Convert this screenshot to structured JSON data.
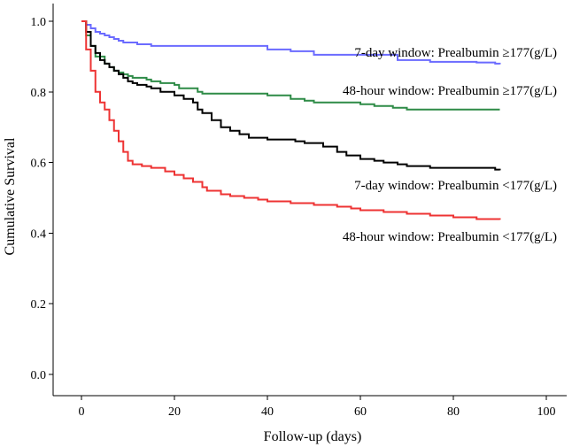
{
  "chart_data": {
    "type": "line",
    "title": "",
    "xlabel": "Follow-up (days)",
    "ylabel": "Cumulative Survival",
    "xlim": [
      0,
      100
    ],
    "ylim": [
      0,
      1.0
    ],
    "xticks": [
      0,
      20,
      40,
      60,
      80,
      100
    ],
    "yticks": [
      0.0,
      0.2,
      0.4,
      0.6,
      0.8,
      1.0
    ],
    "xtick_labels": [
      "0",
      "20",
      "40",
      "60",
      "80",
      "100"
    ],
    "ytick_labels": [
      "0.0",
      "0.2",
      "0.4",
      "0.6",
      "0.8",
      "1.0"
    ],
    "grid": false,
    "legend": "inline labels right of curves",
    "series": [
      {
        "name": "7-day window: Prealbumin ≥177(g/L)",
        "color": "#6b6bff",
        "x": [
          0,
          1,
          2,
          3,
          4,
          5,
          6,
          7,
          8,
          9,
          10,
          12,
          14,
          15,
          25,
          40,
          45,
          50,
          68,
          70,
          75,
          80,
          85,
          89,
          90
        ],
        "y": [
          1.0,
          0.99,
          0.98,
          0.97,
          0.965,
          0.96,
          0.955,
          0.95,
          0.945,
          0.94,
          0.94,
          0.935,
          0.935,
          0.93,
          0.93,
          0.92,
          0.915,
          0.905,
          0.89,
          0.89,
          0.885,
          0.885,
          0.883,
          0.88,
          0.878
        ]
      },
      {
        "name": "48-hour window: Prealbumin ≥177(g/L)",
        "color": "#2e8b47",
        "x": [
          0,
          1,
          2,
          3,
          5,
          6,
          7,
          8,
          9,
          10,
          11,
          12,
          14,
          15,
          17,
          20,
          21,
          25,
          26,
          40,
          45,
          48,
          50,
          60,
          63,
          67,
          70,
          85,
          90
        ],
        "y": [
          1.0,
          0.96,
          0.93,
          0.9,
          0.88,
          0.87,
          0.86,
          0.855,
          0.85,
          0.845,
          0.84,
          0.84,
          0.835,
          0.83,
          0.825,
          0.82,
          0.81,
          0.8,
          0.795,
          0.79,
          0.78,
          0.775,
          0.77,
          0.765,
          0.76,
          0.755,
          0.75,
          0.75,
          0.75
        ]
      },
      {
        "name": "7-day window: Prealbumin <177(g/L)",
        "color": "#000000",
        "x": [
          0,
          1,
          2,
          3,
          4,
          5,
          6,
          7,
          8,
          9,
          10,
          11,
          12,
          14,
          15,
          17,
          20,
          22,
          24,
          25,
          26,
          28,
          30,
          32,
          34,
          36,
          40,
          46,
          48,
          52,
          55,
          57,
          60,
          63,
          65,
          68,
          70,
          75,
          80,
          89,
          90
        ],
        "y": [
          1.0,
          0.97,
          0.93,
          0.91,
          0.89,
          0.88,
          0.87,
          0.86,
          0.85,
          0.84,
          0.83,
          0.825,
          0.82,
          0.815,
          0.81,
          0.8,
          0.79,
          0.78,
          0.77,
          0.75,
          0.74,
          0.72,
          0.7,
          0.69,
          0.68,
          0.67,
          0.665,
          0.66,
          0.655,
          0.645,
          0.63,
          0.62,
          0.61,
          0.605,
          0.6,
          0.595,
          0.59,
          0.585,
          0.585,
          0.58,
          0.578
        ]
      },
      {
        "name": "48-hour window: Prealbumin <177(g/L)",
        "color": "#ee3333",
        "x": [
          0,
          1,
          2,
          3,
          4,
          5,
          6,
          7,
          8,
          9,
          10,
          11,
          13,
          15,
          18,
          20,
          22,
          24,
          26,
          27,
          30,
          32,
          35,
          38,
          40,
          45,
          50,
          55,
          58,
          60,
          65,
          70,
          75,
          80,
          85,
          90
        ],
        "y": [
          1.0,
          0.92,
          0.86,
          0.8,
          0.77,
          0.75,
          0.72,
          0.69,
          0.66,
          0.63,
          0.605,
          0.595,
          0.59,
          0.585,
          0.575,
          0.565,
          0.555,
          0.545,
          0.53,
          0.52,
          0.51,
          0.505,
          0.5,
          0.495,
          0.49,
          0.485,
          0.48,
          0.475,
          0.47,
          0.465,
          0.46,
          0.455,
          0.45,
          0.445,
          0.44,
          0.438
        ]
      }
    ],
    "labels": [
      "7-day window: Prealbumin ≥177(g/L)",
      "48-hour window: Prealbumin ≥177(g/L)",
      "7-day window: Prealbumin <177(g/L)",
      "48-hour window: Prealbumin <177(g/L)"
    ]
  }
}
